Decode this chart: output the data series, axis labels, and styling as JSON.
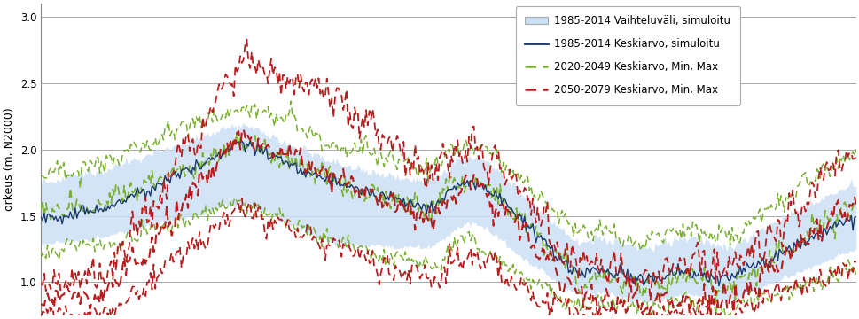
{
  "ylabel": "orkeus (m, N2000)",
  "ylim": [
    0.75,
    3.1
  ],
  "yticks": [
    1.0,
    1.5,
    2.0,
    2.5,
    3.0
  ],
  "n_points": 500,
  "fill_color": "#cce0f5",
  "fill_alpha": 0.85,
  "mean_1985_color": "#1a3a6e",
  "mean_2020_color": "#7ab030",
  "mean_2050_color": "#b81c1c",
  "legend_labels": [
    "1985-2014 Vaihteluväli, simuloitu",
    "1985-2014 Keskiarvo, simuloitu",
    "2020-2049 Keskiarvo, Min, Max",
    "2050-2079 Keskiarvo, Min, Max"
  ],
  "bg_color": "#ffffff",
  "grid_color": "#999999"
}
